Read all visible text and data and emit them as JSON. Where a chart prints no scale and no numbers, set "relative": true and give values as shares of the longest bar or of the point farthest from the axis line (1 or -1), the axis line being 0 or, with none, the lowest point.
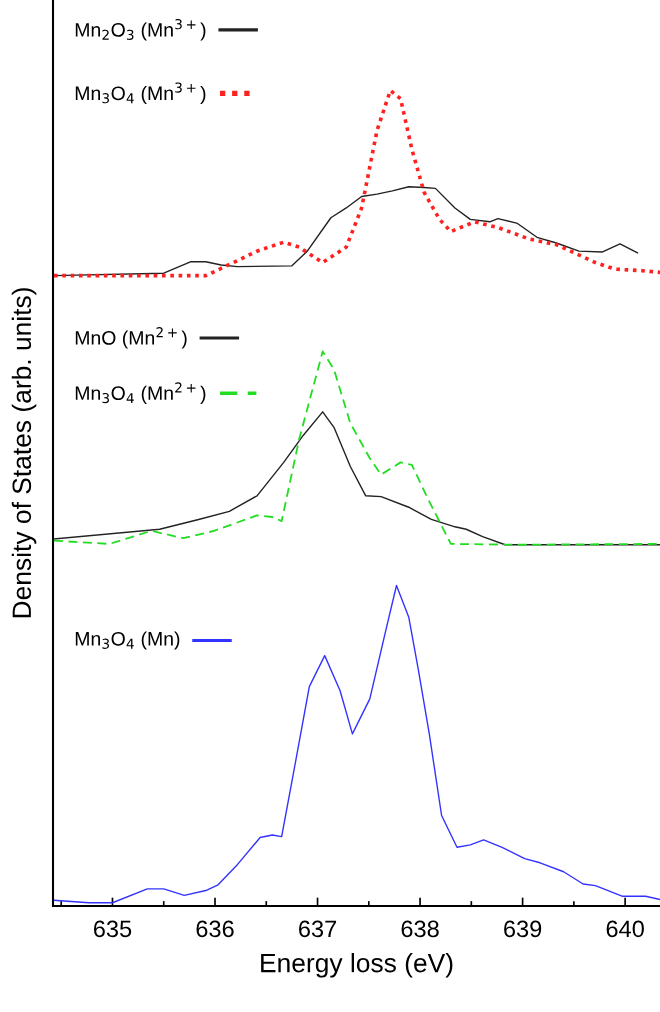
{
  "chart_data": {
    "type": "line",
    "xlabel": "Energy loss (eV)",
    "ylabel": "Density of States (arb. units)",
    "relative": true,
    "xlim": [
      634.42,
      640.34
    ],
    "xticks": [
      {
        "value": 634.5,
        "label": null
      },
      635,
      {
        "value": 635.5,
        "label": null
      },
      636,
      {
        "value": 636.5,
        "label": null
      },
      637,
      {
        "value": 637.5,
        "label": null
      },
      638,
      {
        "value": 638.5,
        "label": null
      },
      639,
      {
        "value": 639.5,
        "label": null
      },
      640
    ],
    "grid": false,
    "legend": "left",
    "marker": "none",
    "series": [
      {
        "name": "Mn$_{2}$O$_{3}$ (Mn$^{3+}$)",
        "color": "#222222",
        "line_style": "solid",
        "x": [
          634.43,
          635.5,
          635.76,
          635.91,
          636.06,
          636.22,
          636.75,
          636.9,
          637.13,
          637.28,
          637.43,
          637.58,
          637.73,
          637.89,
          638.04,
          638.15,
          638.34,
          638.49,
          638.68,
          638.76,
          638.95,
          639.14,
          639.33,
          639.55,
          639.78,
          639.95,
          640.12
        ],
        "values": [
          0.773,
          0.776,
          0.79,
          0.79,
          0.786,
          0.784,
          0.785,
          0.803,
          0.844,
          0.856,
          0.87,
          0.873,
          0.877,
          0.882,
          0.881,
          0.88,
          0.856,
          0.842,
          0.839,
          0.843,
          0.837,
          0.82,
          0.813,
          0.803,
          0.802,
          0.812,
          0.801
        ]
      },
      {
        "name": "Mn$_{3}$O$_{4}$ (Mn$^{3+}$)",
        "color": "#ff2020",
        "line_style": "dotted",
        "x": [
          634.43,
          635.53,
          635.91,
          636.18,
          636.41,
          636.67,
          636.82,
          637.05,
          637.28,
          637.43,
          637.58,
          637.71,
          637.81,
          637.92,
          638.04,
          638.19,
          638.3,
          638.53,
          638.76,
          639.06,
          639.33,
          639.71,
          639.9,
          640.17,
          640.34
        ],
        "values": [
          0.773,
          0.773,
          0.773,
          0.789,
          0.803,
          0.814,
          0.808,
          0.789,
          0.808,
          0.856,
          0.951,
          1.0,
          0.99,
          0.928,
          0.875,
          0.842,
          0.827,
          0.839,
          0.832,
          0.818,
          0.811,
          0.789,
          0.781,
          0.779,
          0.777
        ]
      },
      {
        "name": "MnO (Mn$^{2+}$)",
        "color": "#222222",
        "line_style": "solid",
        "x": [
          634.43,
          635.46,
          635.84,
          636.14,
          636.41,
          636.67,
          636.86,
          637.05,
          637.16,
          637.32,
          637.47,
          637.62,
          637.89,
          638.11,
          638.34,
          638.45,
          638.61,
          638.83,
          640.34
        ],
        "values": [
          0.45,
          0.462,
          0.474,
          0.484,
          0.503,
          0.544,
          0.577,
          0.606,
          0.587,
          0.539,
          0.503,
          0.502,
          0.489,
          0.474,
          0.465,
          0.462,
          0.453,
          0.443,
          0.443
        ]
      },
      {
        "name": "Mn$_{3}$O$_{4}$ (Mn$^{2+}$)",
        "color": "#22dd22",
        "line_style": "dashed",
        "x": [
          634.43,
          634.97,
          635.38,
          635.69,
          635.99,
          636.41,
          636.56,
          636.65,
          636.82,
          637.05,
          637.16,
          637.32,
          637.51,
          637.62,
          637.81,
          637.92,
          638.07,
          638.3,
          638.95,
          640.34
        ],
        "values": [
          0.448,
          0.444,
          0.46,
          0.451,
          0.46,
          0.479,
          0.477,
          0.472,
          0.572,
          0.68,
          0.658,
          0.592,
          0.549,
          0.529,
          0.544,
          0.541,
          0.501,
          0.444,
          0.443,
          0.444
        ]
      },
      {
        "name": "Mn$_{3}$O$_{4}$ (Mn)",
        "color": "#3333ff",
        "line_style": "solid",
        "x": [
          634.43,
          634.77,
          635.0,
          635.34,
          635.5,
          635.7,
          635.91,
          636.03,
          636.22,
          636.44,
          636.56,
          636.65,
          636.78,
          636.92,
          637.07,
          637.22,
          637.34,
          637.51,
          637.66,
          637.77,
          637.89,
          637.98,
          638.09,
          638.21,
          638.36,
          638.49,
          638.62,
          638.8,
          639.02,
          639.17,
          639.4,
          639.59,
          639.71,
          639.97,
          640.2,
          640.34
        ],
        "values": [
          0.007,
          0.004,
          0.004,
          0.021,
          0.021,
          0.013,
          0.019,
          0.026,
          0.051,
          0.084,
          0.087,
          0.085,
          0.173,
          0.269,
          0.307,
          0.264,
          0.211,
          0.254,
          0.335,
          0.393,
          0.354,
          0.292,
          0.211,
          0.111,
          0.072,
          0.075,
          0.081,
          0.072,
          0.058,
          0.053,
          0.042,
          0.027,
          0.025,
          0.012,
          0.012,
          0.008
        ]
      }
    ]
  }
}
